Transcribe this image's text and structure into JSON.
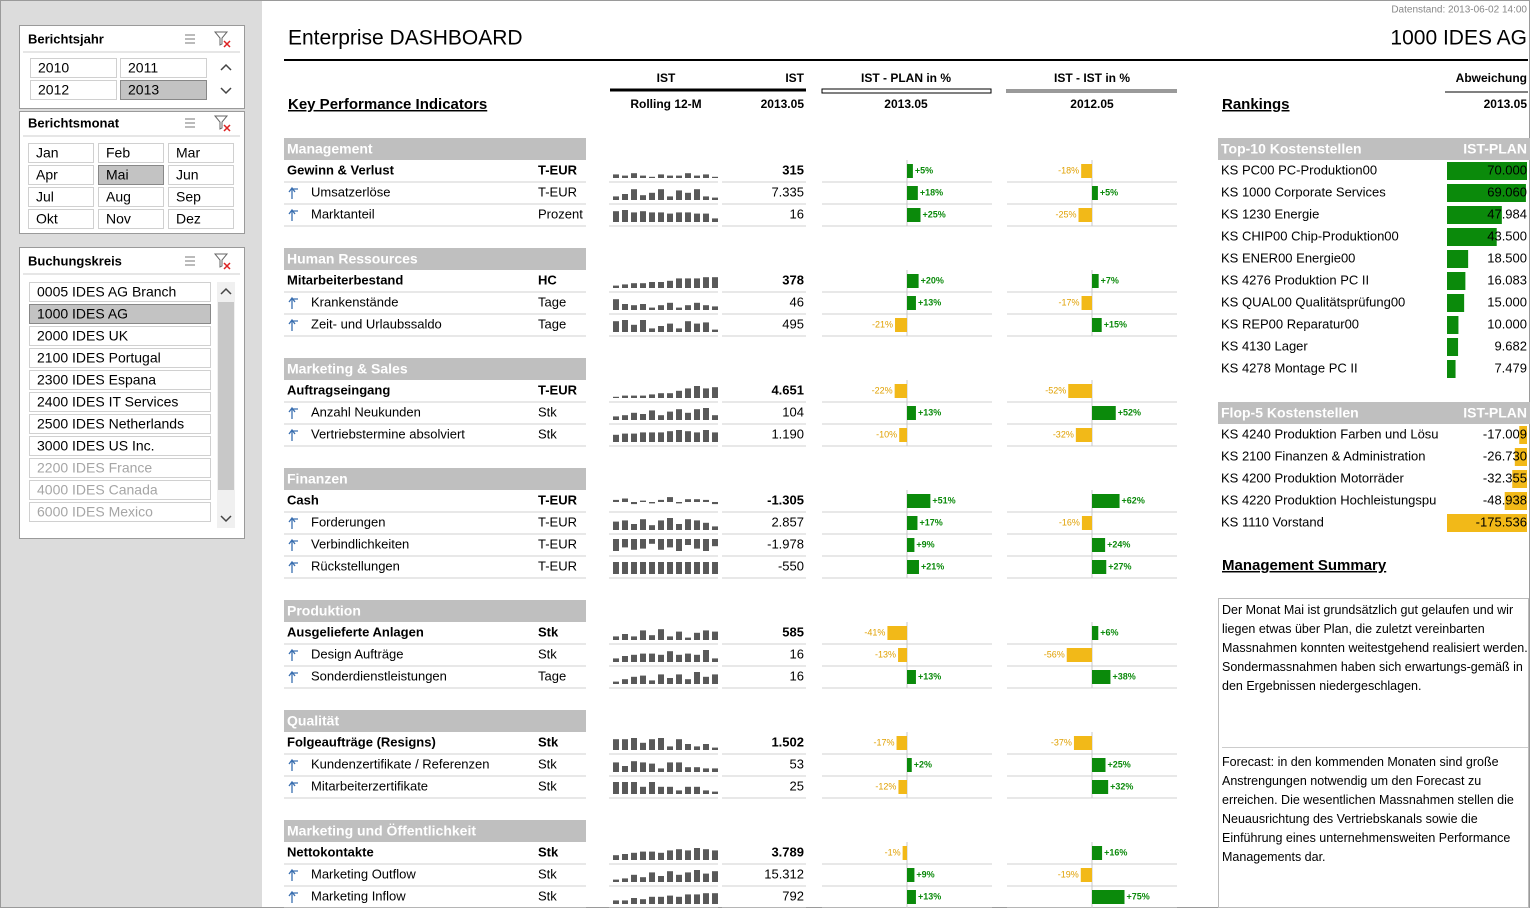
{
  "header": {
    "timestamp": "Datenstand: 2013-06-02 14:00",
    "title": "Enterprise DASHBOARD",
    "company": "1000 IDES AG"
  },
  "slicers": [
    {
      "title": "Berichtsjahr",
      "items": [
        {
          "label": "2010"
        },
        {
          "label": "2011"
        },
        {
          "label": "2012"
        },
        {
          "label": "2013",
          "selected": true
        }
      ]
    },
    {
      "title": "Berichtsmonat",
      "items": [
        {
          "label": "Jan"
        },
        {
          "label": "Feb"
        },
        {
          "label": "Mar"
        },
        {
          "label": "Apr"
        },
        {
          "label": "Mai",
          "selected": true
        },
        {
          "label": "Jun"
        },
        {
          "label": "Jul"
        },
        {
          "label": "Aug"
        },
        {
          "label": "Sep"
        },
        {
          "label": "Okt"
        },
        {
          "label": "Nov"
        },
        {
          "label": "Dez"
        }
      ]
    },
    {
      "title": "Buchungskreis",
      "items": [
        {
          "label": "0005 IDES AG Branch"
        },
        {
          "label": "1000 IDES AG",
          "selected": true
        },
        {
          "label": "2000 IDES UK"
        },
        {
          "label": "2100 IDES Portugal"
        },
        {
          "label": "2300 IDES Espana"
        },
        {
          "label": "2400 IDES IT Services"
        },
        {
          "label": "2500 IDES Netherlands"
        },
        {
          "label": "3000 IDES US Inc."
        },
        {
          "label": "2200 IDES France",
          "available": false
        },
        {
          "label": "4000 IDES Canada",
          "available": false
        },
        {
          "label": "6000 IDES Mexico",
          "available": false
        }
      ]
    }
  ],
  "kpi": {
    "title": "Key Performance Indicators",
    "columns": [
      {
        "title": "IST",
        "subtitle": "Rolling 12-M"
      },
      {
        "title": "IST",
        "subtitle": "2013.05"
      },
      {
        "title": "IST - PLAN in %",
        "subtitle": "2013.05"
      },
      {
        "title": "IST - IST in %",
        "subtitle": "2012.05"
      }
    ],
    "groups": [
      {
        "name": "Management",
        "rows": [
          {
            "label": "Gewinn & Verlust",
            "unit": "T-EUR",
            "trend": [
              3,
              2,
              4,
              2,
              1,
              3,
              2,
              2,
              4,
              2,
              3,
              1
            ],
            "ist": 315,
            "plan_pct": 5,
            "plan_pct_label": "+5%",
            "prev_pct": -18,
            "prev_pct_label": "-18%"
          },
          {
            "label": "Umsatzerlöse",
            "unit": "T-EUR",
            "trend": [
              3,
              5,
              9,
              4,
              6,
              9,
              3,
              8,
              6,
              9,
              3,
              2
            ],
            "ist": 7335,
            "ist_label": "7.335",
            "plan_pct": 18,
            "plan_pct_label": "+18%",
            "prev_pct": 5,
            "prev_pct_label": "+5%"
          },
          {
            "label": "Marktanteil",
            "unit": "Prozent",
            "trend": [
              9,
              10,
              8,
              9,
              8,
              8,
              7,
              8,
              8,
              7,
              7,
              3
            ],
            "ist": 16,
            "plan_pct": 25,
            "plan_pct_label": "+25%",
            "prev_pct": -25,
            "prev_pct_label": "-25%"
          }
        ]
      },
      {
        "name": "Human Ressources",
        "rows": [
          {
            "label": "Mitarbeiterbestand",
            "unit": "HC",
            "trend": [
              2,
              3,
              4,
              4,
              5,
              5,
              6,
              8,
              8,
              8,
              9,
              9
            ],
            "ist": 378,
            "plan_pct": 20,
            "plan_pct_label": "+20%",
            "prev_pct": 7,
            "prev_pct_label": "+7%"
          },
          {
            "label": "Krankenstände",
            "unit": "Tage",
            "trend": [
              9,
              5,
              4,
              5,
              2,
              4,
              6,
              2,
              4,
              6,
              4,
              3
            ],
            "ist": 46,
            "plan_pct": 13,
            "plan_pct_label": "+13%",
            "prev_pct": -17,
            "prev_pct_label": "-17%"
          },
          {
            "label": "Zeit- und Urlaubssaldo",
            "unit": "Tage",
            "trend": [
              9,
              10,
              6,
              10,
              3,
              5,
              7,
              3,
              9,
              7,
              8,
              2
            ],
            "ist": 495,
            "plan_pct": -21,
            "plan_pct_label": "-21%",
            "prev_pct": 15,
            "prev_pct_label": "+15%"
          }
        ]
      },
      {
        "name": "Marketing & Sales",
        "rows": [
          {
            "label": "Auftragseingang",
            "unit": "T-EUR",
            "trend": [
              1,
              2,
              2,
              2,
              3,
              4,
              4,
              6,
              8,
              10,
              8,
              9
            ],
            "ist": 4651,
            "ist_label": "4.651",
            "plan_pct": -22,
            "plan_pct_label": "-22%",
            "prev_pct": -52,
            "prev_pct_label": "-52%"
          },
          {
            "label": "Anzahl Neukunden",
            "unit": "Stk",
            "trend": [
              3,
              4,
              6,
              5,
              8,
              4,
              7,
              9,
              6,
              9,
              10,
              4
            ],
            "ist": 104,
            "plan_pct": 13,
            "plan_pct_label": "+13%",
            "prev_pct": 52,
            "prev_pct_label": "+52%"
          },
          {
            "label": "Vertriebstermine absolviert",
            "unit": "Stk",
            "trend": [
              6,
              7,
              7,
              8,
              8,
              8,
              9,
              10,
              9,
              8,
              10,
              8
            ],
            "ist": 1190,
            "ist_label": "1.190",
            "plan_pct": -10,
            "plan_pct_label": "-10%",
            "prev_pct": -32,
            "prev_pct_label": "-32%"
          }
        ]
      },
      {
        "name": "Finanzen",
        "rows": [
          {
            "label": "Cash",
            "unit": "T-EUR",
            "trend": [
              3,
              5,
              -3,
              2,
              -2,
              3,
              7,
              -2,
              4,
              4,
              3,
              -3
            ],
            "ist": -1305,
            "ist_label": "-1.305",
            "plan_pct": 51,
            "plan_pct_label": "+51%",
            "prev_pct": 62,
            "prev_pct_label": "+62%"
          },
          {
            "label": "Forderungen",
            "unit": "T-EUR",
            "trend": [
              7,
              8,
              5,
              9,
              4,
              8,
              10,
              5,
              9,
              8,
              6,
              3
            ],
            "ist": 2857,
            "ist_label": "2.857",
            "plan_pct": 17,
            "plan_pct_label": "+17%",
            "prev_pct": -16,
            "prev_pct_label": "-16%"
          },
          {
            "label": "Verbindlichkeiten",
            "unit": "T-EUR",
            "trend": [
              -10,
              -7,
              -9,
              -8,
              -4,
              -9,
              -7,
              -10,
              -5,
              -8,
              -10,
              -6
            ],
            "ist": -1978,
            "ist_label": "-1.978",
            "plan_pct": 9,
            "plan_pct_label": "+9%",
            "prev_pct": 24,
            "prev_pct_label": "+24%"
          },
          {
            "label": "Rückstellungen",
            "unit": "T-EUR",
            "trend": [
              10,
              10,
              10,
              10,
              10,
              10,
              10,
              10,
              10,
              10,
              10,
              10
            ],
            "ist": -550,
            "plan_pct": 21,
            "plan_pct_label": "+21%",
            "prev_pct": 27,
            "prev_pct_label": "+27%"
          }
        ]
      },
      {
        "name": "Produktion",
        "rows": [
          {
            "label": "Ausgelieferte Anlagen",
            "unit": "Stk",
            "trend": [
              3,
              5,
              3,
              8,
              4,
              9,
              3,
              7,
              2,
              6,
              8,
              7
            ],
            "ist": 585,
            "plan_pct": -41,
            "plan_pct_label": "-41%",
            "prev_pct": 6,
            "prev_pct_label": "+6%"
          },
          {
            "label": "Design Aufträge",
            "unit": "Stk",
            "trend": [
              3,
              5,
              6,
              7,
              7,
              6,
              9,
              6,
              7,
              6,
              10,
              3
            ],
            "ist": 16,
            "plan_pct": -13,
            "plan_pct_label": "-13%",
            "prev_pct": -56,
            "prev_pct_label": "-56%"
          },
          {
            "label": "Sonderdienstleistungen",
            "unit": "Tage",
            "trend": [
              2,
              4,
              6,
              7,
              3,
              8,
              5,
              8,
              4,
              10,
              6,
              8
            ],
            "ist": 16,
            "plan_pct": 13,
            "plan_pct_label": "+13%",
            "prev_pct": 38,
            "prev_pct_label": "+38%"
          }
        ]
      },
      {
        "name": "Qualität",
        "rows": [
          {
            "label": "Folgeaufträge (Resigns)",
            "unit": "Stk",
            "trend": [
              9,
              9,
              10,
              6,
              9,
              10,
              3,
              9,
              5,
              3,
              5,
              2
            ],
            "ist": 1502,
            "ist_label": "1.502",
            "plan_pct": -17,
            "plan_pct_label": "-17%",
            "prev_pct": -37,
            "prev_pct_label": "-37%"
          },
          {
            "label": "Kundenzertifikate / Referenzen",
            "unit": "Stk",
            "trend": [
              8,
              5,
              9,
              8,
              7,
              3,
              8,
              8,
              4,
              4,
              3,
              3
            ],
            "ist": 53,
            "plan_pct": 2,
            "plan_pct_label": "+2%",
            "prev_pct": 25,
            "prev_pct_label": "+25%"
          },
          {
            "label": "Mitarbeiterzertifikate",
            "unit": "Stk",
            "trend": [
              10,
              10,
              10,
              6,
              10,
              6,
              6,
              3,
              6,
              6,
              3,
              2
            ],
            "ist": 25,
            "plan_pct": -12,
            "plan_pct_label": "-12%",
            "prev_pct": 32,
            "prev_pct_label": "+32%"
          }
        ]
      },
      {
        "name": "Marketing und Öffentlichkeit",
        "rows": [
          {
            "label": "Nettokontakte",
            "unit": "Stk",
            "trend": [
              4,
              5,
              6,
              7,
              7,
              6,
              8,
              9,
              8,
              10,
              9,
              8
            ],
            "ist": 3789,
            "ist_label": "3.789",
            "plan_pct": -1,
            "plan_pct_label": "-1%",
            "prev_pct": 16,
            "prev_pct_label": "+16%"
          },
          {
            "label": "Marketing Outflow",
            "unit": "Stk",
            "trend": [
              2,
              3,
              6,
              4,
              8,
              5,
              9,
              6,
              8,
              10,
              7,
              9
            ],
            "ist": 15312,
            "ist_label": "15.312",
            "plan_pct": 9,
            "plan_pct_label": "+9%",
            "prev_pct": -19,
            "prev_pct_label": "-19%"
          },
          {
            "label": "Marketing Inflow",
            "unit": "Stk",
            "trend": [
              3,
              3,
              5,
              4,
              6,
              6,
              7,
              6,
              8,
              8,
              9,
              9
            ],
            "ist": 792,
            "plan_pct": 13,
            "plan_pct_label": "+13%",
            "prev_pct": 75,
            "prev_pct_label": "+75%"
          }
        ]
      }
    ]
  },
  "rankings": {
    "title": "Rankings",
    "column": {
      "title": "Abweichung",
      "subtitle": "2013.05"
    },
    "top": {
      "title": "Top-10 Kostenstellen",
      "column": "IST-PLAN",
      "items": [
        {
          "label": "KS PC00 PC-Produktion00",
          "value": 70000,
          "value_label": "70.000"
        },
        {
          "label": "KS 1000 Corporate Services",
          "value": 69060,
          "value_label": "69.060"
        },
        {
          "label": "KS 1230 Energie",
          "value": 47984,
          "value_label": "47.984"
        },
        {
          "label": "KS CHIP00 Chip-Produktion00",
          "value": 43500,
          "value_label": "43.500"
        },
        {
          "label": "KS ENER00 Energie00",
          "value": 18500,
          "value_label": "18.500"
        },
        {
          "label": "KS 4276 Produktion PC II",
          "value": 16083,
          "value_label": "16.083"
        },
        {
          "label": "KS QUAL00 Qualitätsprüfung00",
          "value": 15000,
          "value_label": "15.000"
        },
        {
          "label": "KS REP00 Reparatur00",
          "value": 10000,
          "value_label": "10.000"
        },
        {
          "label": "KS 4130 Lager",
          "value": 9682,
          "value_label": "9.682"
        },
        {
          "label": "KS 4278 Montage PC II",
          "value": 7479,
          "value_label": "7.479"
        }
      ]
    },
    "flop": {
      "title": "Flop-5 Kostenstellen",
      "column": "IST-PLAN",
      "items": [
        {
          "label": "KS 4240 Produktion Farben und Lösu",
          "value": -17009,
          "value_label": "-17.009"
        },
        {
          "label": "KS 2100 Finanzen & Administration",
          "value": -26730,
          "value_label": "-26.730"
        },
        {
          "label": "KS 4200 Produktion Motorräder",
          "value": -32355,
          "value_label": "-32.355"
        },
        {
          "label": "KS 4220 Produktion Hochleistungspu",
          "value": -48938,
          "value_label": "-48.938"
        },
        {
          "label": "KS 1110 Vorstand",
          "value": -175536,
          "value_label": "-175.536"
        }
      ]
    }
  },
  "summary": {
    "title": "Management Summary",
    "paragraphs": [
      "Der Monat Mai ist grundsätzlich gut gelaufen und wir liegen etwas über Plan, die zuletzt vereinbarten Massnahmen konnten weitestgehend realisiert werden. Sondermassnahmen haben sich erwartungs-gemäß in den Ergebnissen niedergeschlagen.",
      "Forecast: in den kommenden Monaten sind große Anstrengungen notwendig um den Forecast zu erreichen. Die wesentlichen Massnahmen stellen die Neuausrichtung des Vertriebskanals sowie die Einführung eines unternehmensweiten Performance Managements dar."
    ]
  }
}
